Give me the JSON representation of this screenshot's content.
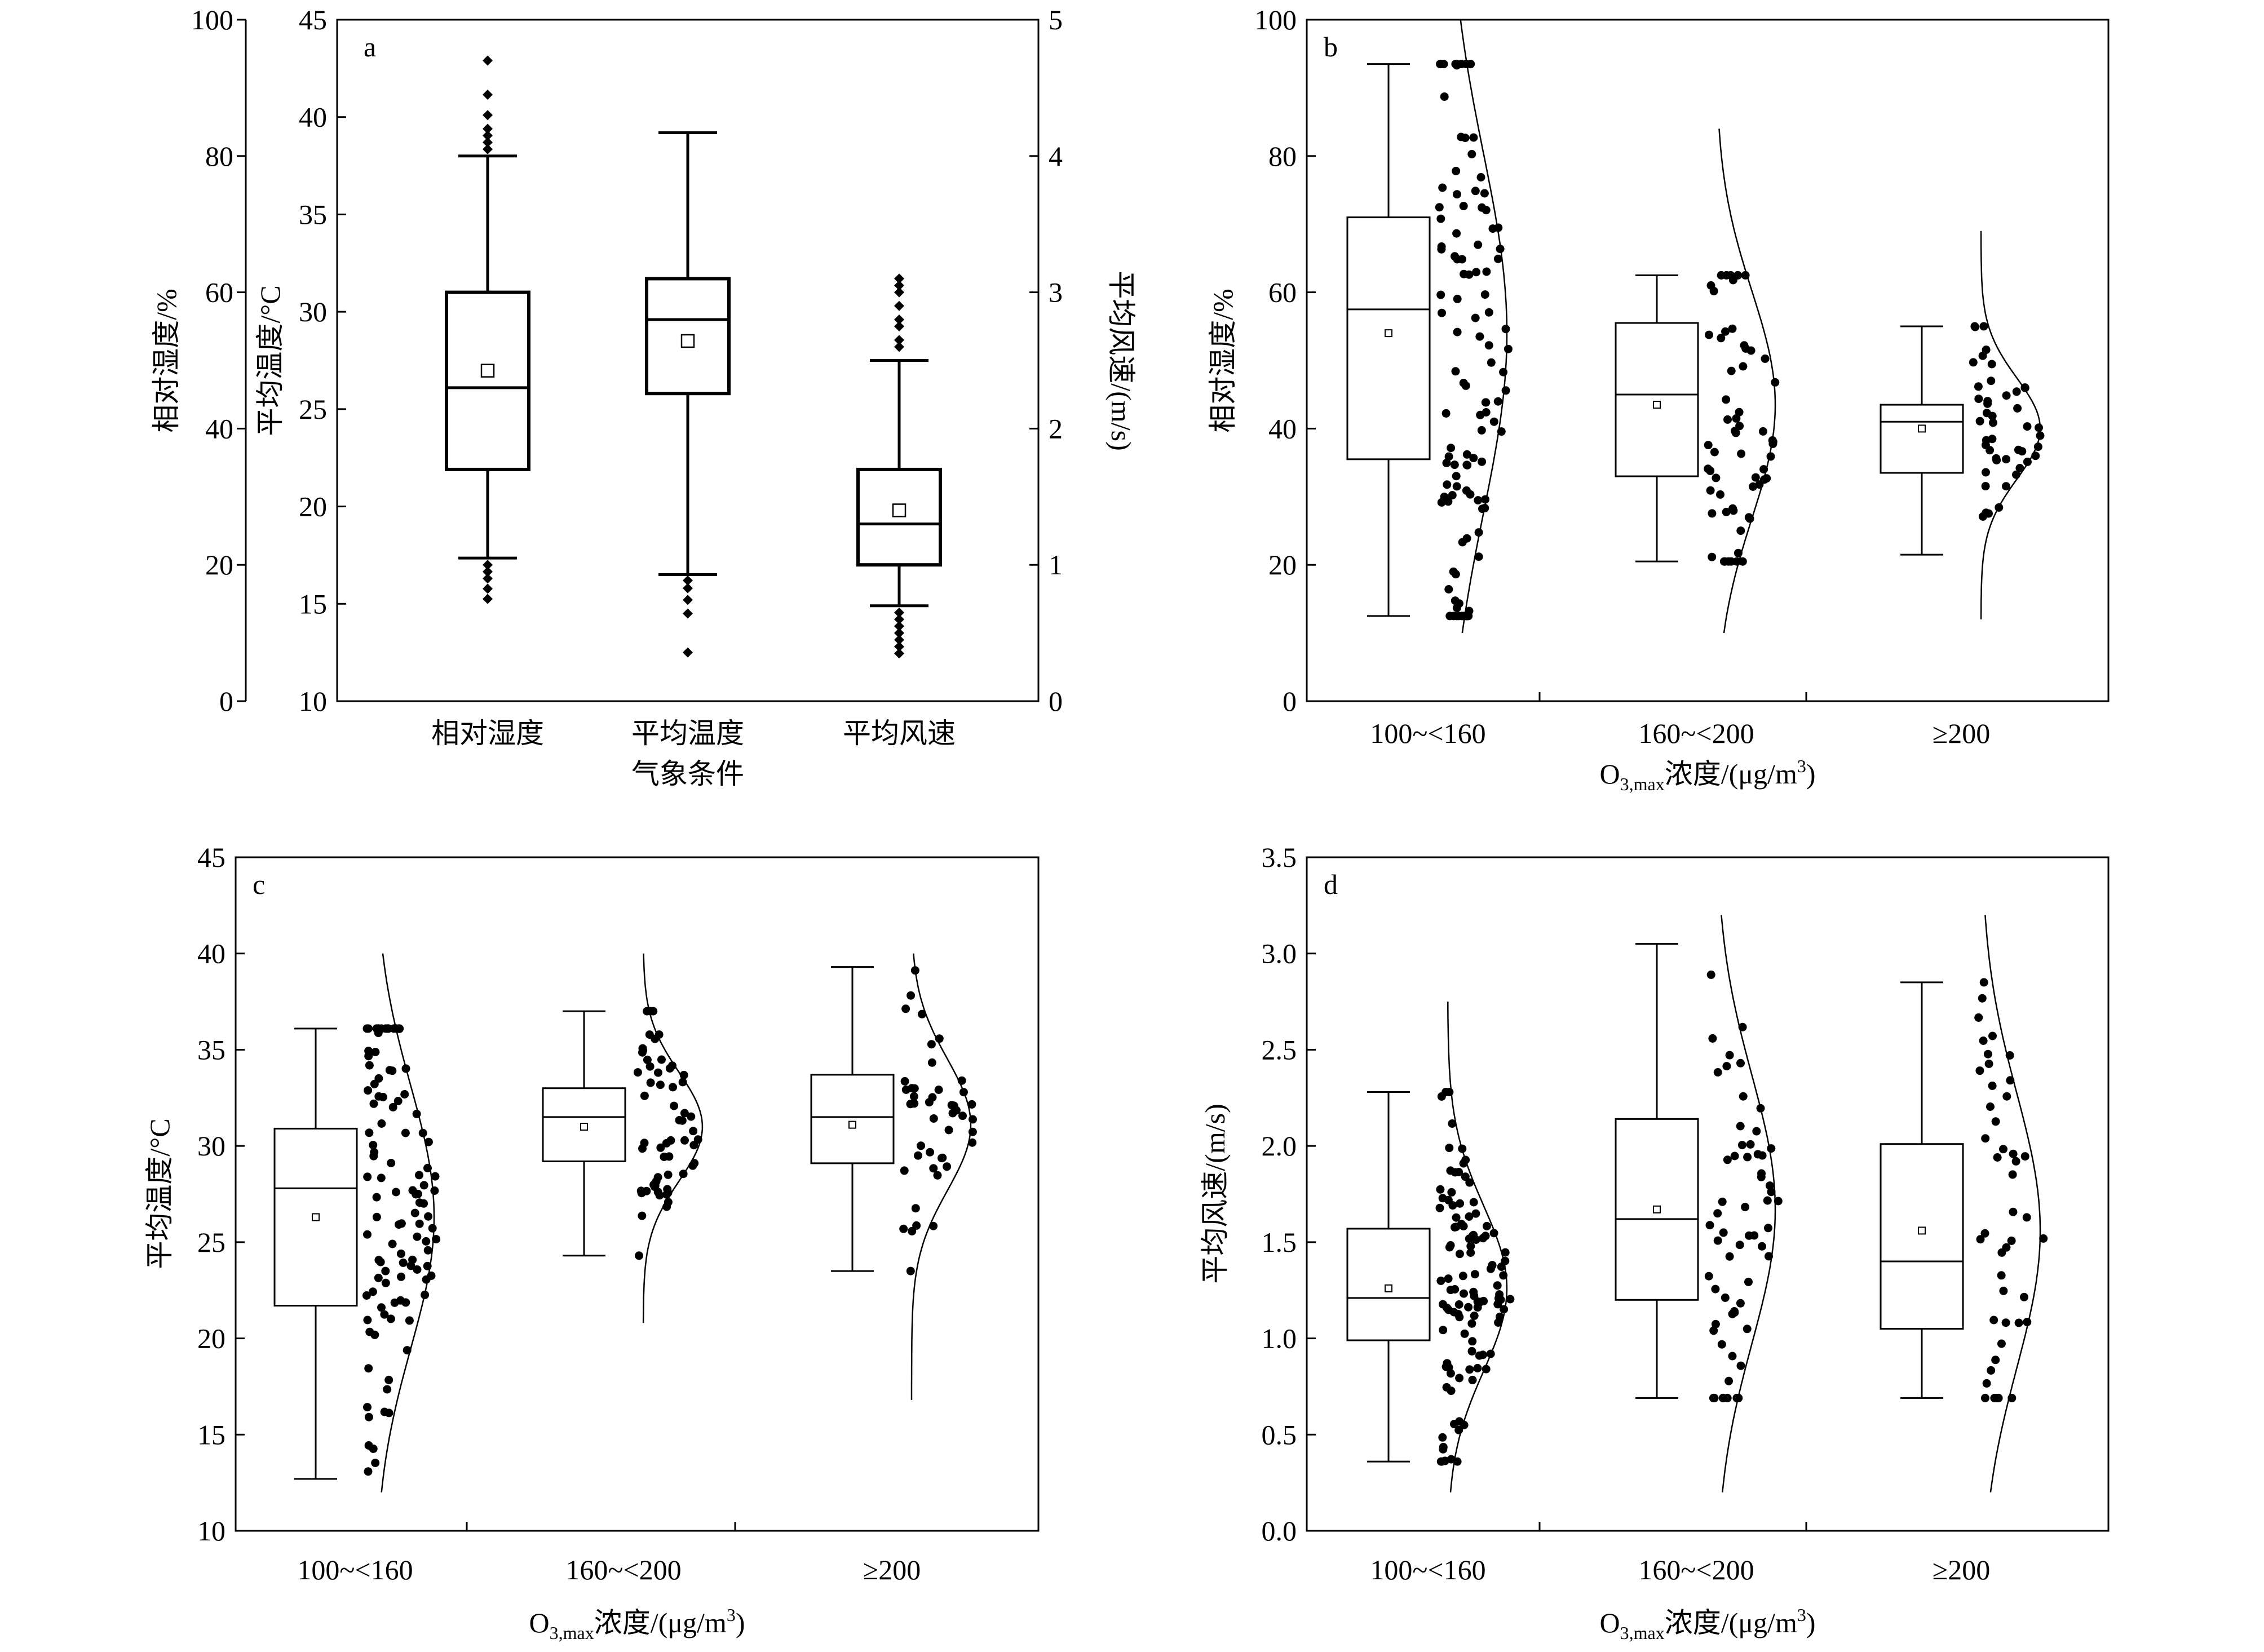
{
  "chart_data": [
    {
      "panel": "a",
      "type": "box",
      "xlabel": "气象条件",
      "categories": [
        "相对湿度",
        "平均温度",
        "平均风速"
      ],
      "axes": {
        "left_outer": {
          "label": "相对湿度/%",
          "ylim": [
            0,
            100
          ],
          "ticks": [
            0,
            20,
            40,
            60,
            80,
            100
          ],
          "series": "相对湿度"
        },
        "left_inner": {
          "label": "平均温度/°C",
          "ylim": [
            10,
            45
          ],
          "ticks": [
            10,
            15,
            20,
            25,
            30,
            35,
            40,
            45
          ],
          "series": "平均温度"
        },
        "right": {
          "label": "平均风速/(m/s)",
          "ylim": [
            0,
            5
          ],
          "ticks": [
            0,
            1,
            2,
            3,
            4,
            5
          ],
          "series": "平均风速"
        }
      },
      "boxes": [
        {
          "category": "相对湿度",
          "axis": "left_outer",
          "whisker_low": 21,
          "q1": 34,
          "median": 46,
          "q3": 60,
          "whisker_high": 80,
          "mean": 48.5,
          "outliers": [
            15,
            16.5,
            18,
            19,
            20,
            81,
            82,
            83,
            84,
            86,
            89,
            94
          ]
        },
        {
          "category": "平均温度",
          "axis": "left_inner",
          "whisker_low": 16.5,
          "q1": 25.8,
          "median": 29.6,
          "q3": 31.7,
          "whisker_high": 39.2,
          "mean": 28.5,
          "outliers": [
            12.5,
            14.5,
            15.2,
            15.8,
            16.2
          ]
        },
        {
          "category": "平均风速",
          "axis": "right",
          "whisker_low": 0.7,
          "q1": 1.0,
          "median": 1.3,
          "q3": 1.7,
          "whisker_high": 2.5,
          "mean": 1.4,
          "outliers": [
            0.35,
            0.4,
            0.45,
            0.5,
            0.55,
            0.6,
            0.65,
            2.6,
            2.65,
            2.75,
            2.8,
            2.9,
            3.0,
            3.05,
            3.1
          ]
        }
      ]
    },
    {
      "panel": "b",
      "type": "box",
      "ylabel": "相对湿度/%",
      "xlabel": "O₃,max浓度/(μg/m³)",
      "xlabel_parts": {
        "base": "O",
        "sub": "3,max",
        "mid": "浓度/(μg/m",
        "sup": "3",
        "end": ")"
      },
      "ylim": [
        0,
        100
      ],
      "yticks": [
        0,
        20,
        40,
        60,
        80,
        100
      ],
      "categories": [
        "100~<160",
        "160~<200",
        "≥200"
      ],
      "boxes": [
        {
          "category": "100~<160",
          "whisker_low": 12.5,
          "q1": 35.5,
          "median": 57.5,
          "q3": 71,
          "whisker_high": 93.5,
          "mean": 54,
          "density_range": [
            10,
            100
          ],
          "n": 110
        },
        {
          "category": "160~<200",
          "whisker_low": 20.5,
          "q1": 33,
          "median": 45,
          "q3": 55.5,
          "whisker_high": 62.5,
          "mean": 43.5,
          "density_range": [
            10,
            84
          ],
          "n": 60
        },
        {
          "category": "≥200",
          "whisker_low": 21.5,
          "q1": 33.5,
          "median": 41,
          "q3": 43.5,
          "whisker_high": 55,
          "mean": 40,
          "density_range": [
            12,
            69
          ],
          "n": 45
        }
      ]
    },
    {
      "panel": "c",
      "type": "box",
      "ylabel": "平均温度/°C",
      "xlabel": "O₃,max浓度/(μg/m³)",
      "xlabel_parts": {
        "base": "O",
        "sub": "3,max",
        "mid": "浓度/(μg/m",
        "sup": "3",
        "end": ")"
      },
      "ylim": [
        10,
        45
      ],
      "yticks": [
        10,
        15,
        20,
        25,
        30,
        35,
        40,
        45
      ],
      "categories": [
        "100~<160",
        "160~<200",
        "≥200"
      ],
      "boxes": [
        {
          "category": "100~<160",
          "whisker_low": 12.7,
          "q1": 21.7,
          "median": 27.8,
          "q3": 30.9,
          "whisker_high": 36.1,
          "mean": 26.3,
          "density_range": [
            12,
            40
          ],
          "n": 110
        },
        {
          "category": "160~<200",
          "whisker_low": 24.3,
          "q1": 29.2,
          "median": 31.5,
          "q3": 33,
          "whisker_high": 37,
          "mean": 31,
          "density_range": [
            20.8,
            40
          ],
          "n": 60
        },
        {
          "category": "≥200",
          "whisker_low": 23.5,
          "q1": 29.1,
          "median": 31.5,
          "q3": 33.7,
          "whisker_high": 39.3,
          "mean": 31.1,
          "density_range": [
            16.8,
            40
          ],
          "n": 45
        }
      ]
    },
    {
      "panel": "d",
      "type": "box",
      "ylabel": "平均风速/(m/s)",
      "xlabel": "O₃,max浓度/(μg/m³)",
      "xlabel_parts": {
        "base": "O",
        "sub": "3,max",
        "mid": "浓度/(μg/m",
        "sup": "3",
        "end": ")"
      },
      "ylim": [
        0,
        3.5
      ],
      "yticks": [
        0,
        0.5,
        1.0,
        1.5,
        2.0,
        2.5,
        3.0,
        3.5
      ],
      "categories": [
        "100~<160",
        "160~<200",
        "≥200"
      ],
      "boxes": [
        {
          "category": "100~<160",
          "whisker_low": 0.36,
          "q1": 0.99,
          "median": 1.21,
          "q3": 1.57,
          "whisker_high": 2.28,
          "mean": 1.26,
          "density_range": [
            0.2,
            2.75
          ],
          "n": 110
        },
        {
          "category": "160~<200",
          "whisker_low": 0.69,
          "q1": 1.2,
          "median": 1.62,
          "q3": 2.14,
          "whisker_high": 3.05,
          "mean": 1.67,
          "density_range": [
            0.2,
            3.2
          ],
          "n": 60
        },
        {
          "category": "≥200",
          "whisker_low": 0.69,
          "q1": 1.05,
          "median": 1.4,
          "q3": 2.01,
          "whisker_high": 2.85,
          "mean": 1.56,
          "density_range": [
            0.2,
            3.2
          ],
          "n": 45
        }
      ]
    }
  ]
}
